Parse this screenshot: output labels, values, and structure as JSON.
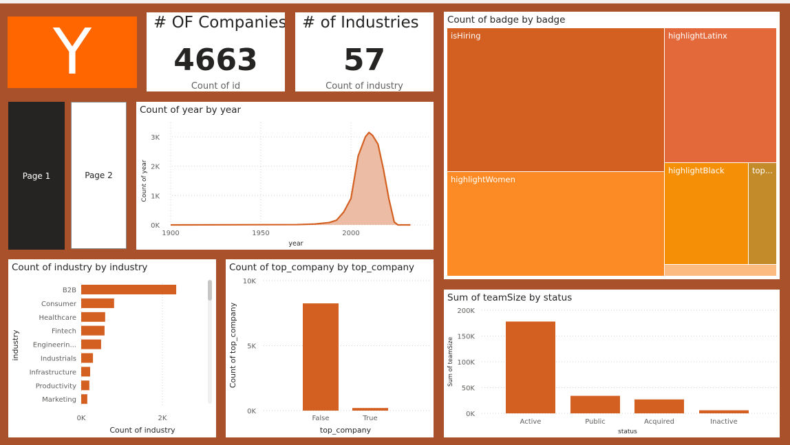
{
  "logo": {
    "letter": "Y",
    "color": "#ff6600"
  },
  "kpis": [
    {
      "title": "# OF Companies",
      "value": "4663",
      "subtitle": "Count of id"
    },
    {
      "title": "# of Industries",
      "value": "57",
      "subtitle": "Count of industry"
    }
  ],
  "pages": [
    {
      "label": "Page 1",
      "active": true
    },
    {
      "label": "Page 2",
      "active": false
    }
  ],
  "colors": {
    "background": "#a9512a",
    "bar": "#d35f21",
    "area_fill": "#ecbca4"
  },
  "chart_data": [
    {
      "type": "area",
      "title": "Count of year by year",
      "xlabel": "year",
      "ylabel": "Count of year",
      "x_ticks": [
        "1900",
        "1950",
        "2000"
      ],
      "y_ticks": [
        "0K",
        "1K",
        "2K",
        "3K"
      ],
      "xlim": [
        1900,
        2033
      ],
      "ylim": [
        0,
        3500
      ],
      "grid": true,
      "x": [
        1900,
        1970,
        1980,
        1988,
        1992,
        1996,
        2000,
        2004,
        2008,
        2010,
        2012,
        2015,
        2018,
        2021,
        2024,
        2026,
        2033
      ],
      "y": [
        0,
        10,
        30,
        80,
        160,
        440,
        900,
        2350,
        3000,
        3150,
        3050,
        2750,
        1900,
        900,
        100,
        0,
        0
      ]
    },
    {
      "type": "bar",
      "orientation": "horizontal",
      "title": "Count of industry by industry",
      "xlabel": "Count of industry",
      "ylabel": "industry",
      "categories": [
        "B2B",
        "Consumer",
        "Healthcare",
        "Fintech",
        "Engineerin...",
        "Industrials",
        "Infrastructure",
        "Productivity",
        "Marketing"
      ],
      "values": [
        2340,
        810,
        590,
        575,
        490,
        290,
        220,
        200,
        150
      ],
      "x_ticks": [
        "0K",
        "2K"
      ],
      "xlim": [
        0,
        3000
      ],
      "grid": true
    },
    {
      "type": "bar",
      "title": "Count of top_company by top_company",
      "xlabel": "top_company",
      "ylabel": "Count of top_company",
      "categories": [
        "False",
        "True"
      ],
      "values": [
        8250,
        200
      ],
      "y_ticks": [
        "0K",
        "5K",
        "10K"
      ],
      "ylim": [
        0,
        10000
      ],
      "grid": true
    },
    {
      "type": "treemap",
      "title": "Count of badge by badge",
      "categories": [
        "isHiring",
        "highlightWomen",
        "highlightLatinx",
        "highlightBlack",
        "top...",
        ""
      ],
      "values": [
        66000,
        47700,
        31700,
        18000,
        5800,
        2600
      ],
      "colors": [
        "#d35f21",
        "#fd8b25",
        "#e4693a",
        "#f58f06",
        "#c48b2b",
        "#fcbb80"
      ]
    },
    {
      "type": "bar",
      "title": "Sum of teamSize by status",
      "xlabel": "status",
      "ylabel": "Sum of teamSize",
      "categories": [
        "Active",
        "Public",
        "Acquired",
        "Inactive"
      ],
      "values": [
        178000,
        34000,
        27000,
        6000
      ],
      "y_ticks": [
        "0K",
        "50K",
        "100K",
        "150K",
        "200K"
      ],
      "ylim": [
        0,
        200000
      ],
      "grid": true
    }
  ]
}
